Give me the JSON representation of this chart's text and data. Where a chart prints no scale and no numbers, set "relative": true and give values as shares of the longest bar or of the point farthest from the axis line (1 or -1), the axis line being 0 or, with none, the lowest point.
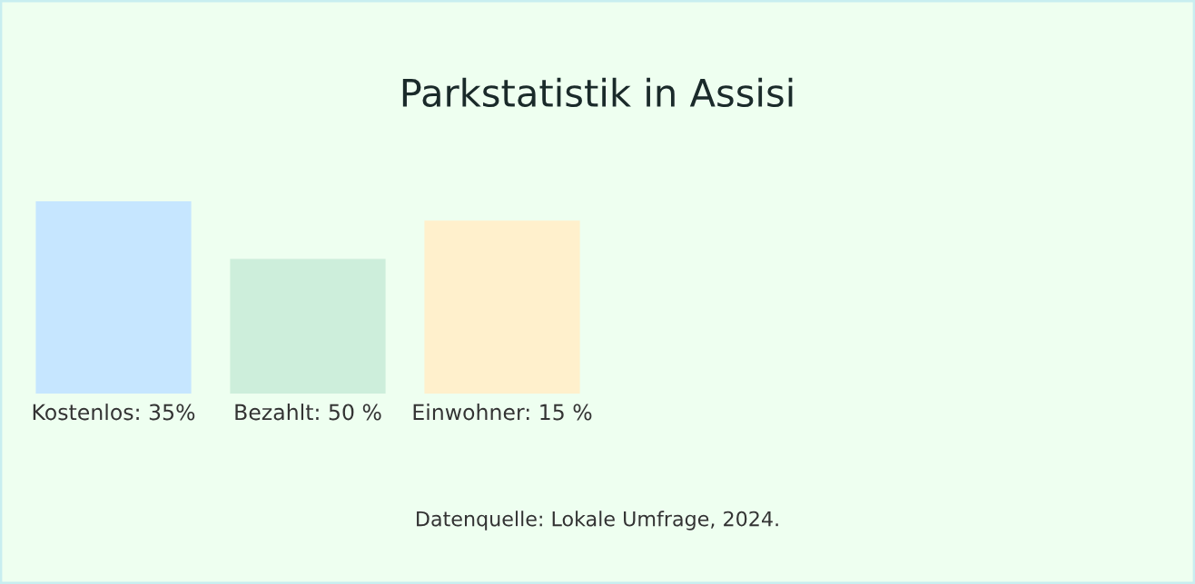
{
  "chart_data": {
    "type": "bar",
    "title": "Parkstatistik in Assisi",
    "categories": [
      "Kostenlos: 35%",
      "Bezahlt: 50 %",
      "Einwohner: 15 %"
    ],
    "values": [
      1,
      0.7,
      0.9
    ],
    "relative": true,
    "colors": [
      "#c6e6ff",
      "#cdeedb",
      "#fff0cc"
    ],
    "grid": false,
    "legend": false,
    "annotations": [
      "Datenquelle: Lokale Umfrage, 2024."
    ]
  }
}
